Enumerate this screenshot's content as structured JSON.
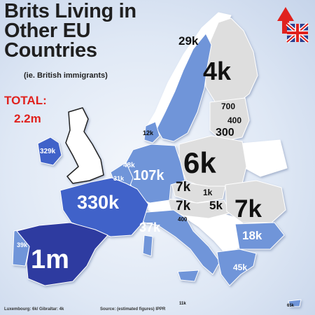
{
  "header": {
    "title_lines": [
      "Brits Living in",
      "Other EU",
      "Countries"
    ],
    "subtitle": "(ie. British immigrants)"
  },
  "total": {
    "label": "TOTAL:",
    "value": "2.2m"
  },
  "countries": [
    {
      "name": "Spain",
      "label": "1m",
      "value_thousands": 1000,
      "shade": "dark-blue"
    },
    {
      "name": "France",
      "label": "330k",
      "value_thousands": 330,
      "shade": "mid-blue"
    },
    {
      "name": "Ireland",
      "label": "329k",
      "value_thousands": 329,
      "shade": "mid-blue"
    },
    {
      "name": "Germany",
      "label": "107k",
      "value_thousands": 107,
      "shade": "light-blue"
    },
    {
      "name": "Italy",
      "label": "37k",
      "value_thousands": 37,
      "shade": "light-blue"
    },
    {
      "name": "Netherlands",
      "label": "48k",
      "value_thousands": 48,
      "shade": "light-blue"
    },
    {
      "name": "Greece",
      "label": "45k",
      "value_thousands": 45,
      "shade": "light-blue"
    },
    {
      "name": "Portugal",
      "label": "39k",
      "value_thousands": 39,
      "shade": "light-blue"
    },
    {
      "name": "Belgium",
      "label": "31k",
      "value_thousands": 31,
      "shade": "light-blue"
    },
    {
      "name": "Sweden",
      "label": "29k",
      "value_thousands": 29,
      "shade": "light-blue"
    },
    {
      "name": "Bulgaria",
      "label": "18k",
      "value_thousands": 18,
      "shade": "light-blue"
    },
    {
      "name": "Denmark",
      "label": "12k",
      "value_thousands": 12,
      "shade": "light-blue"
    },
    {
      "name": "Cyprus",
      "label": "65k",
      "value_thousands": 65,
      "shade": "light-blue"
    },
    {
      "name": "Malta",
      "label": "11k",
      "value_thousands": 11,
      "shade": "light-blue"
    },
    {
      "name": "Poland",
      "label": "6k",
      "value_thousands": 6,
      "shade": "grey"
    },
    {
      "name": "Finland",
      "label": "4k",
      "value_thousands": 4,
      "shade": "grey"
    },
    {
      "name": "Romania",
      "label": "7k",
      "value_thousands": 7,
      "shade": "grey"
    },
    {
      "name": "Czech Republic",
      "label": "7k",
      "value_thousands": 7,
      "shade": "grey"
    },
    {
      "name": "Austria",
      "label": "7k",
      "value_thousands": 7,
      "shade": "grey"
    },
    {
      "name": "Hungary",
      "label": "5k",
      "value_thousands": 5,
      "shade": "grey"
    },
    {
      "name": "Slovakia",
      "label": "1k",
      "value_thousands": 1,
      "shade": "grey"
    },
    {
      "name": "Estonia",
      "label": "700",
      "value_thousands": 0.7,
      "shade": "grey"
    },
    {
      "name": "Latvia",
      "label": "400",
      "value_thousands": 0.4,
      "shade": "grey"
    },
    {
      "name": "Lithuania",
      "label": "300",
      "value_thousands": 0.3,
      "shade": "grey"
    },
    {
      "name": "Slovenia",
      "label": "400",
      "value_thousands": 0.4,
      "shade": "grey"
    }
  ],
  "footer": {
    "note": "Luxembourg: 6k/ Gibraltar: 4k",
    "source": "Source: (estimated figures) IPPR"
  },
  "colors": {
    "dark_blue": "#2e3aa0",
    "mid_blue": "#3f62c9",
    "light_blue": "#6f95d9",
    "grey": "#dedede",
    "non_eu": "#ffffff",
    "title_red": "#e0211d"
  }
}
